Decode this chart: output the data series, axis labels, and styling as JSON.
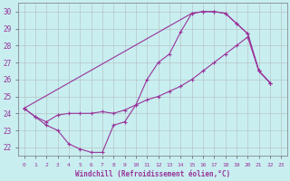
{
  "background_color": "#c8eef0",
  "grid_color": "#b0b0b0",
  "line_color": "#993399",
  "xlim": [
    -0.5,
    23.5
  ],
  "ylim": [
    21.5,
    30.5
  ],
  "yticks": [
    22,
    23,
    24,
    25,
    26,
    27,
    28,
    29,
    30
  ],
  "xticks": [
    0,
    1,
    2,
    3,
    4,
    5,
    6,
    7,
    8,
    9,
    10,
    11,
    12,
    13,
    14,
    15,
    16,
    17,
    18,
    19,
    20,
    21,
    22,
    23
  ],
  "xlabel": "Windchill (Refroidissement éolien,°C)",
  "line1_x": [
    0,
    1,
    2,
    3,
    4,
    5,
    6,
    7,
    8,
    9,
    10,
    11,
    12,
    13,
    14,
    15,
    16,
    17,
    18,
    19,
    20,
    21,
    22
  ],
  "line1_y": [
    24.3,
    23.8,
    23.3,
    23.0,
    22.2,
    21.9,
    21.7,
    21.7,
    23.3,
    23.5,
    24.5,
    26.0,
    27.0,
    27.5,
    28.8,
    29.9,
    30.0,
    30.0,
    29.9,
    29.3,
    28.7,
    26.5,
    25.8
  ],
  "line2_x": [
    0,
    1,
    2,
    3,
    4,
    5,
    6,
    7,
    8,
    9,
    10,
    11,
    12,
    13,
    14,
    15,
    16,
    17,
    18,
    19,
    20,
    21,
    22
  ],
  "line2_y": [
    24.3,
    23.8,
    23.5,
    23.9,
    24.0,
    24.0,
    24.0,
    24.1,
    24.0,
    24.2,
    24.5,
    24.8,
    25.0,
    25.3,
    25.6,
    26.0,
    26.5,
    27.0,
    27.5,
    28.0,
    28.5,
    26.5,
    25.8
  ],
  "line3_x": [
    0,
    15,
    16,
    17,
    18,
    19,
    20,
    21,
    22
  ],
  "line3_y": [
    24.3,
    29.9,
    30.0,
    30.0,
    29.9,
    29.3,
    28.7,
    26.5,
    25.8
  ]
}
